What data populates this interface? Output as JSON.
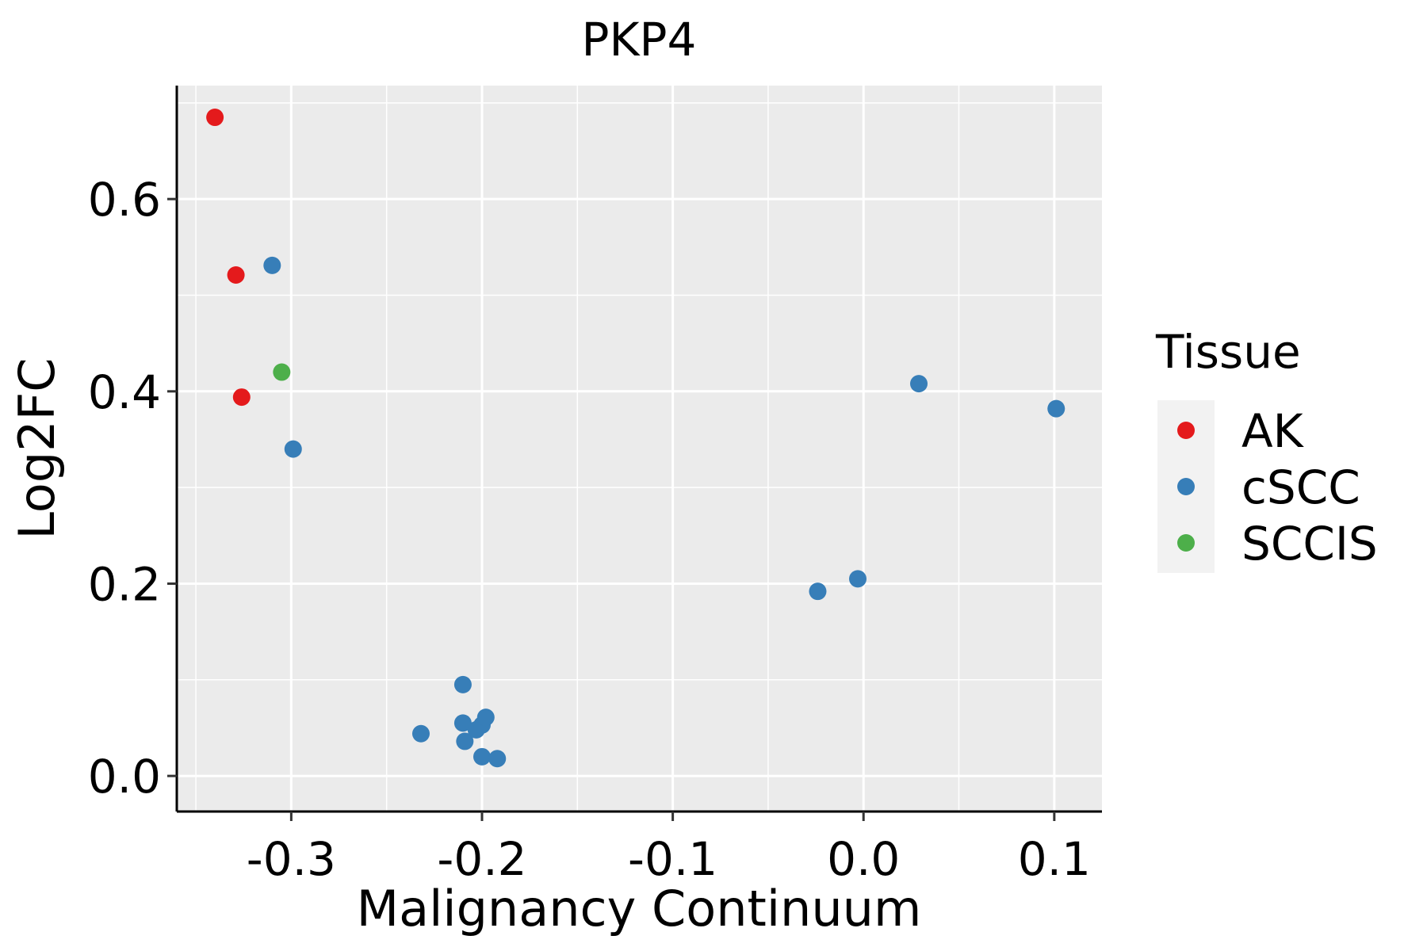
{
  "chart_data": {
    "type": "scatter",
    "title": "PKP4",
    "xlabel": "Malignancy Continuum",
    "ylabel": "Log2FC",
    "xlim": [
      -0.36,
      0.125
    ],
    "ylim": [
      -0.037,
      0.718
    ],
    "x_ticks": [
      -0.3,
      -0.2,
      -0.1,
      0.0,
      0.1
    ],
    "x_tick_labels": [
      "-0.3",
      "-0.2",
      "-0.1",
      "0.0",
      "0.1"
    ],
    "y_ticks": [
      0.0,
      0.2,
      0.4,
      0.6
    ],
    "y_tick_labels": [
      "0.0",
      "0.2",
      "0.4",
      "0.6"
    ],
    "grid": true,
    "legend": {
      "title": "Tissue",
      "position": "right",
      "entries": [
        {
          "name": "AK",
          "color": "#E41A1C"
        },
        {
          "name": "cSCC",
          "color": "#377EB8"
        },
        {
          "name": "SCCIS",
          "color": "#4DAF4A"
        }
      ]
    },
    "series": [
      {
        "name": "AK",
        "color": "#E41A1C",
        "points": [
          {
            "x": -0.34,
            "y": 0.685
          },
          {
            "x": -0.329,
            "y": 0.521
          },
          {
            "x": -0.326,
            "y": 0.394
          }
        ]
      },
      {
        "name": "cSCC",
        "color": "#377EB8",
        "points": [
          {
            "x": -0.31,
            "y": 0.531
          },
          {
            "x": -0.299,
            "y": 0.34
          },
          {
            "x": -0.232,
            "y": 0.044
          },
          {
            "x": -0.21,
            "y": 0.095
          },
          {
            "x": -0.21,
            "y": 0.055
          },
          {
            "x": -0.209,
            "y": 0.036
          },
          {
            "x": -0.203,
            "y": 0.048
          },
          {
            "x": -0.2,
            "y": 0.053
          },
          {
            "x": -0.198,
            "y": 0.061
          },
          {
            "x": -0.2,
            "y": 0.02
          },
          {
            "x": -0.192,
            "y": 0.018
          },
          {
            "x": -0.024,
            "y": 0.192
          },
          {
            "x": -0.003,
            "y": 0.205
          },
          {
            "x": 0.029,
            "y": 0.408
          },
          {
            "x": 0.101,
            "y": 0.382
          }
        ]
      },
      {
        "name": "SCCIS",
        "color": "#4DAF4A",
        "points": [
          {
            "x": -0.305,
            "y": 0.42
          }
        ]
      }
    ]
  }
}
